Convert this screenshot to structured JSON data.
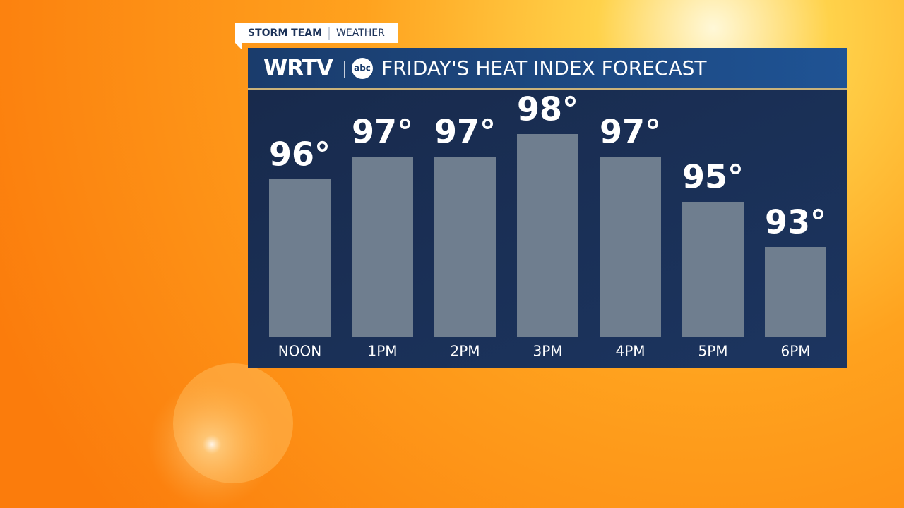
{
  "header": {
    "tag": "STORM TEAM",
    "section": "WEATHER",
    "station": "WRTV",
    "network": "abc"
  },
  "chart_data": {
    "type": "bar",
    "title": "FRIDAY'S HEAT INDEX FORECAST",
    "categories": [
      "NOON",
      "1PM",
      "2PM",
      "3PM",
      "4PM",
      "5PM",
      "6PM"
    ],
    "values": [
      96,
      97,
      97,
      98,
      97,
      95,
      93
    ],
    "value_labels": [
      "96°",
      "97°",
      "97°",
      "98°",
      "97°",
      "95°",
      "93°"
    ],
    "color": "#6f7e8f",
    "ylim": [
      89,
      100
    ]
  }
}
